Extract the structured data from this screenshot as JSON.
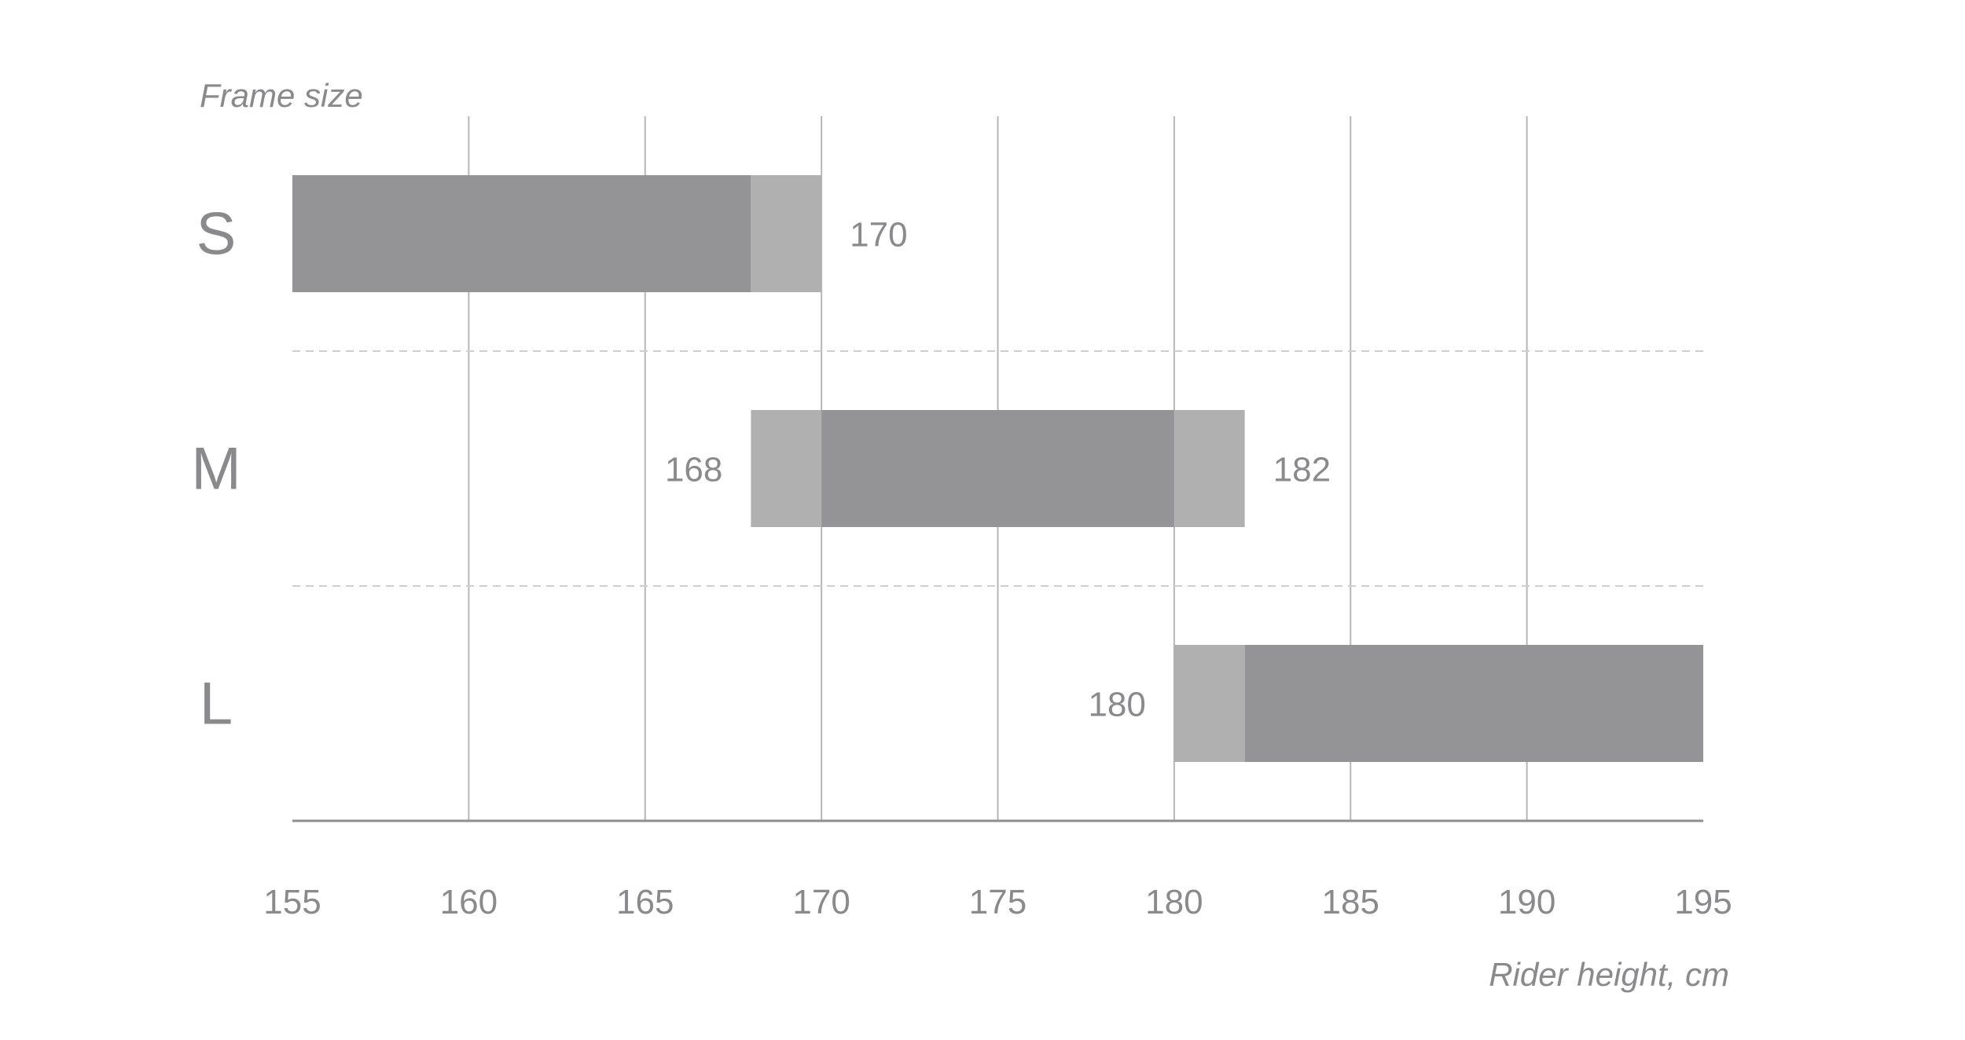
{
  "colors": {
    "core": "#949497",
    "overlap": "#b0b0b1",
    "grid": "#b7b7b7",
    "separator": "#cfcfcf",
    "axis": "#8e8e8e",
    "text": "#8a8a8d"
  },
  "chart_data": {
    "type": "bar",
    "orientation": "horizontal",
    "ylabel": "Frame size",
    "xlabel": "Rider height, cm",
    "xlim": [
      155,
      195
    ],
    "xticks": [
      "155",
      "160",
      "165",
      "170",
      "175",
      "180",
      "185",
      "190",
      "195"
    ],
    "grid": true,
    "categories": [
      "S",
      "M",
      "L"
    ],
    "ranges": [
      {
        "size": "S",
        "min": 155,
        "max": 170,
        "core": [
          155,
          168
        ],
        "overlap": [
          [
            168,
            170
          ]
        ],
        "labels": [
          {
            "text": "170",
            "at": "end"
          }
        ]
      },
      {
        "size": "M",
        "min": 168,
        "max": 182,
        "core": [
          170,
          180
        ],
        "overlap": [
          [
            168,
            170
          ],
          [
            180,
            182
          ]
        ],
        "labels": [
          {
            "text": "168",
            "at": "start"
          },
          {
            "text": "182",
            "at": "end"
          }
        ]
      },
      {
        "size": "L",
        "min": 180,
        "max": 195,
        "core": [
          182,
          195
        ],
        "overlap": [
          [
            180,
            182
          ]
        ],
        "labels": [
          {
            "text": "180",
            "at": "start"
          }
        ]
      }
    ]
  }
}
